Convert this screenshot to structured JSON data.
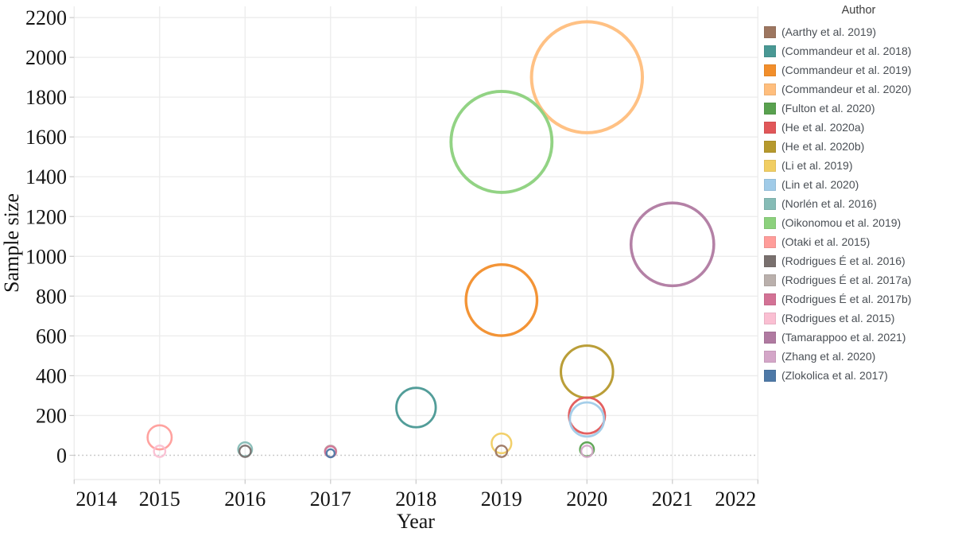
{
  "chart_data": {
    "type": "scatter",
    "subtype": "bubble",
    "title": "",
    "xlabel": "Year",
    "ylabel": "Sample size",
    "legend_title": "Author",
    "legend_position": "right",
    "grid": true,
    "xlim": [
      2014,
      2022
    ],
    "ylim": [
      0,
      2200
    ],
    "x_ticks": [
      2014,
      2015,
      2016,
      2017,
      2018,
      2019,
      2020,
      2021,
      2022
    ],
    "y_ticks": [
      0,
      200,
      400,
      600,
      800,
      1000,
      1200,
      1400,
      1600,
      1800,
      2000,
      2200
    ],
    "size_encoding": "bubble area proportional to sample size",
    "series": [
      {
        "name": "(Aarthy et al. 2019)",
        "x": 2019,
        "y": 20,
        "color": "#9D7660"
      },
      {
        "name": "(Commandeur et al. 2018)",
        "x": 2018,
        "y": 240,
        "color": "#499894"
      },
      {
        "name": "(Commandeur et al. 2019)",
        "x": 2019,
        "y": 780,
        "color": "#F28E2B"
      },
      {
        "name": "(Commandeur et al. 2020)",
        "x": 2020,
        "y": 1900,
        "color": "#FFBE7D"
      },
      {
        "name": "(Fulton et al. 2020)",
        "x": 2020,
        "y": 30,
        "color": "#59A14F"
      },
      {
        "name": "(He et al. 2020a)",
        "x": 2020,
        "y": 200,
        "color": "#E15759"
      },
      {
        "name": "(He et al. 2020b)",
        "x": 2020,
        "y": 420,
        "color": "#B6992D"
      },
      {
        "name": "(Li et al. 2019)",
        "x": 2019,
        "y": 60,
        "color": "#F1CE63"
      },
      {
        "name": "(Lin et al. 2020)",
        "x": 2020,
        "y": 180,
        "color": "#A0CBE8"
      },
      {
        "name": "(Norlén et al. 2016)",
        "x": 2016,
        "y": 30,
        "color": "#86BCB6"
      },
      {
        "name": "(Oikonomou et al. 2019)",
        "x": 2019,
        "y": 1575,
        "color": "#8CD17D"
      },
      {
        "name": "(Otaki et al. 2015)",
        "x": 2015,
        "y": 90,
        "color": "#FF9D9A"
      },
      {
        "name": "(Rodrigues É et al. 2016)",
        "x": 2016,
        "y": 20,
        "color": "#79706E"
      },
      {
        "name": "(Rodrigues É et al. 2017a)",
        "x": 2017,
        "y": 20,
        "color": "#BAB0AC"
      },
      {
        "name": "(Rodrigues É et al. 2017b)",
        "x": 2017,
        "y": 18,
        "color": "#D37295"
      },
      {
        "name": "(Rodrigues et al. 2015)",
        "x": 2015,
        "y": 20,
        "color": "#FABFD2"
      },
      {
        "name": "(Tamarappoo et al. 2021)",
        "x": 2021,
        "y": 1060,
        "color": "#B07AA1"
      },
      {
        "name": "(Zhang et al. 2020)",
        "x": 2020,
        "y": 20,
        "color": "#D4A6C8"
      },
      {
        "name": "(Zlokolica et al. 2017)",
        "x": 2017,
        "y": 10,
        "color": "#4E79A7"
      }
    ]
  },
  "colors": {
    "background": "#ffffff",
    "gridline": "#ececec",
    "zero_line": "#bdbdbd",
    "axis_line": "#e0e0e0",
    "tick_mark": "#c9c9c9",
    "axis_text": "#141414",
    "legend_text": "#4a4f55"
  }
}
